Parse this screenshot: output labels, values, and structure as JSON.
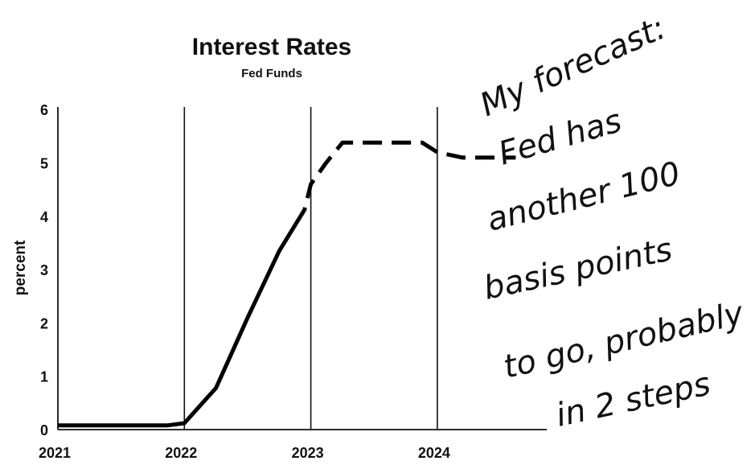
{
  "chart_data": {
    "type": "line",
    "title": "Interest Rates",
    "subtitle": "Fed Funds",
    "ylabel": "percent",
    "xlabel": "",
    "ylim": [
      0,
      6
    ],
    "xlim": [
      2021.0,
      2024.7
    ],
    "yticks": [
      "0",
      "1",
      "2",
      "3",
      "4",
      "5",
      "6"
    ],
    "xticks": [
      "2021",
      "2022",
      "2023",
      "2024"
    ],
    "grid": "vertical lines at year boundaries",
    "series": [
      {
        "style": "solid",
        "x": [
          2021.0,
          2021.5,
          2021.87,
          2022.0,
          2022.25,
          2022.5,
          2022.75,
          2022.88
        ],
        "y": [
          0.08,
          0.08,
          0.08,
          0.12,
          0.78,
          2.1,
          3.35,
          3.85
        ]
      },
      {
        "style": "dashed",
        "x": [
          2022.88,
          2022.95,
          2023.0,
          2023.12,
          2023.25,
          2023.5,
          2023.75,
          2023.88,
          2024.0,
          2024.2,
          2024.4,
          2024.62
        ],
        "y": [
          3.85,
          4.12,
          4.6,
          5.0,
          5.38,
          5.38,
          5.38,
          5.38,
          5.2,
          5.1,
          5.1,
          5.1
        ]
      }
    ],
    "annotation": {
      "lines": [
        "My forecast:",
        "Fed has",
        "another 100",
        "basis points",
        "to go, probably",
        "in 2 steps"
      ]
    }
  }
}
